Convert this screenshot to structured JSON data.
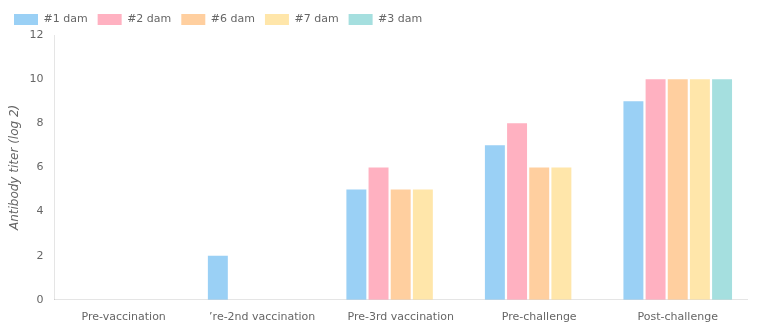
{
  "chart_data": {
    "type": "bar",
    "ylabel": "Antibody titer (log 2)",
    "categories": [
      "Pre-vaccination",
      "’re-2nd vaccination",
      "Pre-3rd vaccination",
      "Pre-challenge",
      "Post-challenge"
    ],
    "series": [
      {
        "name": "#1 dam",
        "values": [
          0,
          2,
          5,
          7,
          9
        ]
      },
      {
        "name": "#2 dam",
        "values": [
          0,
          0,
          6,
          8,
          10
        ]
      },
      {
        "name": "#6 dam",
        "values": [
          0,
          0,
          5,
          6,
          10
        ]
      },
      {
        "name": "#7 dam",
        "values": [
          0,
          0,
          5,
          6,
          10
        ]
      },
      {
        "name": "#3 dam",
        "values": [
          0,
          0,
          0,
          0,
          10
        ]
      }
    ],
    "ylim": [
      0,
      12
    ],
    "yticks": [
      0,
      2,
      4,
      6,
      8,
      10,
      12
    ],
    "grid": false,
    "legend": "upper left"
  }
}
